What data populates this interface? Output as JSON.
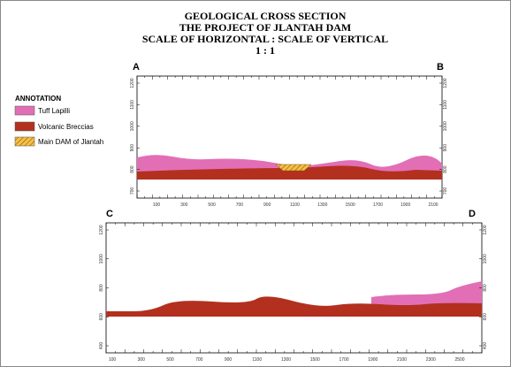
{
  "title_lines": [
    "GEOLOGICAL CROSS SECTION",
    "THE PROJECT OF JLANTAH DAM",
    "SCALE OF HORIZONTAL : SCALE OF VERTICAL",
    "1 : 1"
  ],
  "points": {
    "a": "A",
    "b": "B",
    "c": "C",
    "d": "D"
  },
  "annotation": {
    "title": "ANNOTATION",
    "items": [
      "Tuff Lapilli",
      "Volcanic Breccias",
      "Main DAM of Jlantah"
    ]
  },
  "section_ab": {
    "x_labels": [
      "100",
      "300",
      "500",
      "700",
      "900",
      "1100",
      "1300",
      "1500",
      "1700",
      "1900",
      "2100"
    ],
    "y_labels": [
      "1200",
      "1100",
      "1000",
      "900",
      "800",
      "700"
    ]
  },
  "section_cd": {
    "x_labels": [
      "100",
      "300",
      "500",
      "700",
      "900",
      "1100",
      "1300",
      "1500",
      "1700",
      "1900",
      "2100",
      "2300",
      "2500"
    ],
    "y_labels": [
      "1200",
      "1000",
      "800",
      "600",
      "400"
    ]
  }
}
